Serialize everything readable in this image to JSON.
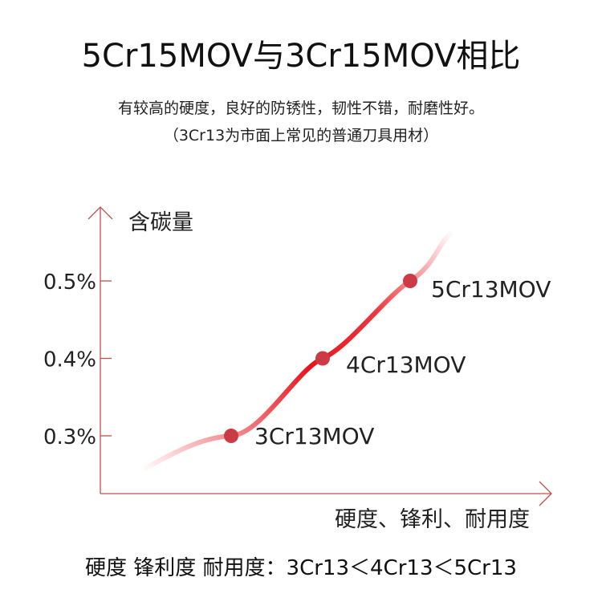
{
  "title": "5Cr15MOV与3Cr15MOV相比",
  "subtitle_line1": "有较高的硬度，良好的防锈性，韧性不错，耐磨性好。",
  "subtitle_line2": "（3Cr13为市面上常见的普通刀具用材）",
  "footer": "硬度 锋利度 耐用度：3Cr13＜4Cr13＜5Cr13",
  "colors": {
    "axis": "#c0504d",
    "curve": "#e8141c",
    "point": "#cc3b45",
    "text": "#222222"
  },
  "chart_data": {
    "type": "line",
    "title": "",
    "xlabel": "硬度、锋利、耐用度",
    "ylabel": "含碳量",
    "yticks": [
      {
        "value": 0.5,
        "label": "0.5%"
      },
      {
        "value": 0.4,
        "label": "0.4%"
      },
      {
        "value": 0.3,
        "label": "0.3%"
      }
    ],
    "points": [
      {
        "label": "3Cr13MOV",
        "y": 0.3
      },
      {
        "label": "4Cr13MOV",
        "y": 0.4
      },
      {
        "label": "5Cr13MOV",
        "y": 0.5
      }
    ],
    "grid": false,
    "legend": "none"
  }
}
